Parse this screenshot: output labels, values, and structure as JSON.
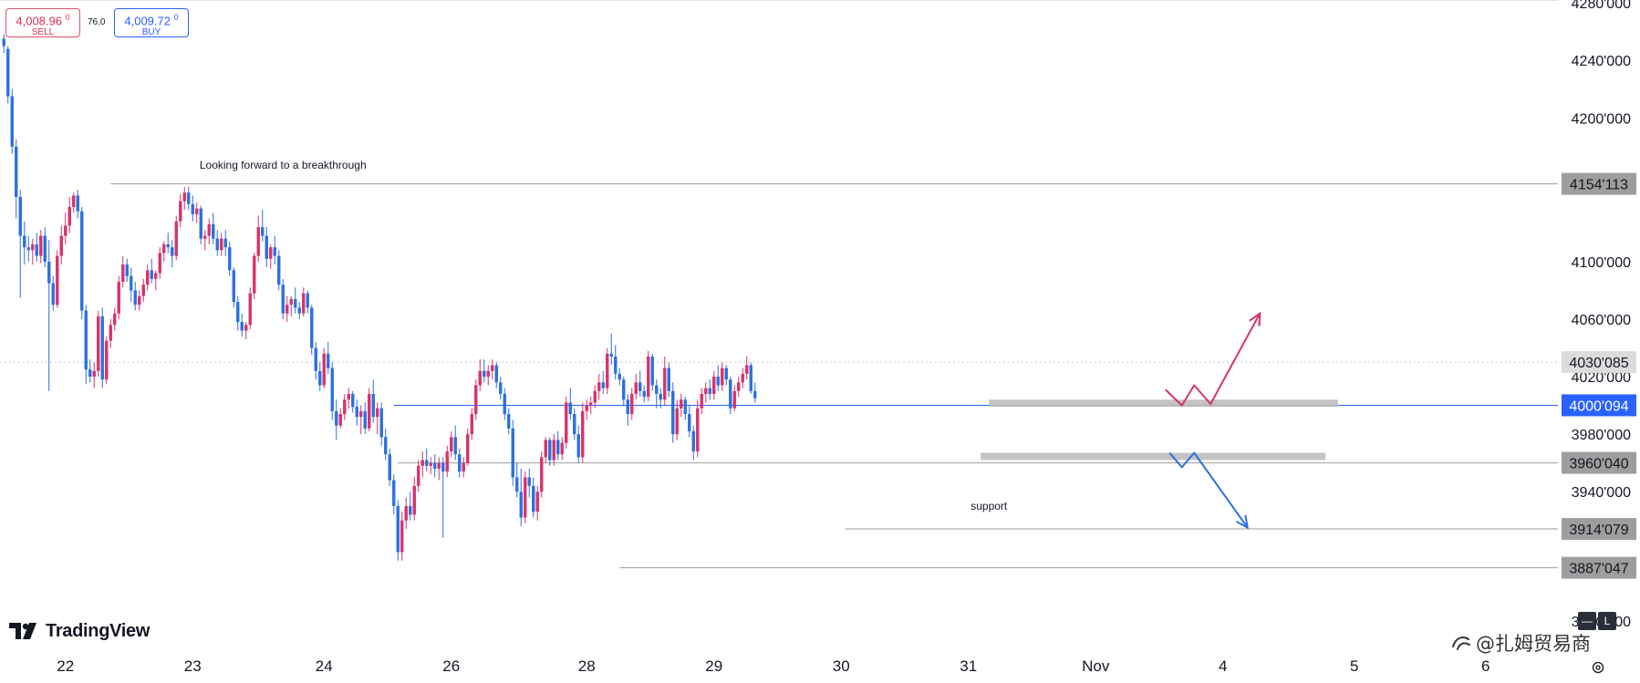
{
  "trade": {
    "sell_price": "4,008.96",
    "sell_sup": "0",
    "sell_label": "SELL",
    "spread": "76.0",
    "buy_price": "4,009.72",
    "buy_sup": "0",
    "buy_label": "BUY"
  },
  "branding": {
    "logo_text": "TradingView",
    "watermark_text": "@扎姆贸易商",
    "mode_buttons": [
      "—",
      "L"
    ]
  },
  "colors": {
    "up": "#d6336c",
    "down": "#2d6fe0",
    "level_line": "#9e9e9e",
    "current_line": "#2962ff",
    "zone": "#bdbdbd",
    "arrow_up": "#d6336c",
    "arrow_down": "#2d6fe0",
    "tag_grey": "#9e9e9e",
    "tag_light": "#dcdcdc",
    "tag_current": "#2962ff"
  },
  "chart_data": {
    "type": "candlestick",
    "title": "",
    "xlabel": "",
    "ylabel": "",
    "ylim": [
      3838,
      4282
    ],
    "y_ticks": [
      "4280'000",
      "4240'000",
      "4200'000",
      "4100'000",
      "4060'000",
      "4020'000",
      "3980'000",
      "3940'000",
      "3850'000"
    ],
    "y_tick_values": [
      4280,
      4240,
      4200,
      4100,
      4060,
      4020,
      3980,
      3940,
      3850
    ],
    "x_ticks": [
      "22",
      "23",
      "24",
      "26",
      "28",
      "29",
      "30",
      "31",
      "Nov",
      "4",
      "5",
      "6"
    ],
    "x_tick_index": [
      15,
      46,
      78,
      109,
      142,
      173,
      204,
      235,
      266,
      297,
      329,
      361
    ],
    "price_tags": [
      {
        "label": "4154'113",
        "value": 4154.113,
        "style": "grey"
      },
      {
        "label": "4030'085",
        "value": 4030.085,
        "style": "light"
      },
      {
        "label": "4000'094",
        "value": 4000.094,
        "style": "current"
      },
      {
        "label": "3960'040",
        "value": 3960.04,
        "style": "grey"
      },
      {
        "label": "3914'079",
        "value": 3914.079,
        "style": "grey"
      },
      {
        "label": "3887'047",
        "value": 3887.047,
        "style": "grey"
      }
    ],
    "levels": [
      {
        "value": 4154.113,
        "from_index": 26
      },
      {
        "value": 4000.094,
        "from_index": 95,
        "style": "current"
      },
      {
        "value": 3960.04,
        "from_index": 96
      },
      {
        "value": 3914.079,
        "from_index": 205
      },
      {
        "value": 3887.047,
        "from_index": 150
      }
    ],
    "dotted_level": 4030.085,
    "zones": [
      {
        "from_index": 240,
        "to_index": 325,
        "low": 3999,
        "high": 4004
      },
      {
        "from_index": 238,
        "to_index": 322,
        "low": 3962,
        "high": 3967
      }
    ],
    "annotations": [
      {
        "text": "Looking forward to a breakthrough",
        "index": 68,
        "value": 4162
      },
      {
        "text": "support",
        "index": 240,
        "value": 3925
      }
    ],
    "projection_up": [
      [
        283,
        4011
      ],
      [
        287,
        4000
      ],
      [
        290,
        4014
      ],
      [
        294,
        4001
      ],
      [
        306,
        4064
      ]
    ],
    "projection_down": [
      [
        284,
        3967
      ],
      [
        287,
        3957
      ],
      [
        290,
        3967
      ],
      [
        303,
        3915
      ]
    ],
    "ohlc": [
      [
        4255,
        4258,
        4245,
        4250
      ],
      [
        4248,
        4250,
        4210,
        4215
      ],
      [
        4215,
        4220,
        4175,
        4180
      ],
      [
        4180,
        4185,
        4130,
        4145
      ],
      [
        4145,
        4150,
        4075,
        4118
      ],
      [
        4118,
        4128,
        4098,
        4110
      ],
      [
        4110,
        4118,
        4100,
        4108
      ],
      [
        4108,
        4116,
        4098,
        4112
      ],
      [
        4112,
        4120,
        4100,
        4104
      ],
      [
        4104,
        4122,
        4099,
        4118
      ],
      [
        4118,
        4124,
        4096,
        4100
      ],
      [
        4100,
        4115,
        4010,
        4085
      ],
      [
        4085,
        4090,
        4066,
        4070
      ],
      [
        4070,
        4108,
        4068,
        4104
      ],
      [
        4104,
        4125,
        4098,
        4118
      ],
      [
        4118,
        4134,
        4112,
        4125
      ],
      [
        4125,
        4145,
        4120,
        4138
      ],
      [
        4138,
        4148,
        4134,
        4146
      ],
      [
        4146,
        4150,
        4130,
        4135
      ],
      [
        4135,
        4138,
        4060,
        4066
      ],
      [
        4066,
        4070,
        4015,
        4025
      ],
      [
        4025,
        4032,
        4016,
        4020
      ],
      [
        4020,
        4030,
        4012,
        4024
      ],
      [
        4024,
        4066,
        4020,
        4062
      ],
      [
        4062,
        4068,
        4012,
        4018
      ],
      [
        4018,
        4048,
        4015,
        4045
      ],
      [
        4045,
        4060,
        4040,
        4056
      ],
      [
        4056,
        4068,
        4052,
        4064
      ],
      [
        4064,
        4090,
        4060,
        4086
      ],
      [
        4086,
        4104,
        4082,
        4098
      ],
      [
        4098,
        4102,
        4086,
        4090
      ],
      [
        4090,
        4096,
        4072,
        4080
      ],
      [
        4080,
        4086,
        4066,
        4070
      ],
      [
        4070,
        4080,
        4066,
        4076
      ],
      [
        4076,
        4088,
        4072,
        4084
      ],
      [
        4084,
        4098,
        4080,
        4094
      ],
      [
        4094,
        4102,
        4085,
        4088
      ],
      [
        4088,
        4094,
        4080,
        4092
      ],
      [
        4092,
        4110,
        4088,
        4106
      ],
      [
        4106,
        4114,
        4100,
        4112
      ],
      [
        4112,
        4120,
        4106,
        4110
      ],
      [
        4110,
        4115,
        4096,
        4104
      ],
      [
        4104,
        4132,
        4101,
        4128
      ],
      [
        4128,
        4147,
        4124,
        4142
      ],
      [
        4142,
        4152,
        4136,
        4148
      ],
      [
        4148,
        4152,
        4136,
        4140
      ],
      [
        4140,
        4146,
        4128,
        4133
      ],
      [
        4133,
        4141,
        4127,
        4137
      ],
      [
        4137,
        4139,
        4112,
        4116
      ],
      [
        4116,
        4122,
        4108,
        4118
      ],
      [
        4118,
        4130,
        4112,
        4126
      ],
      [
        4126,
        4134,
        4112,
        4116
      ],
      [
        4116,
        4122,
        4104,
        4108
      ],
      [
        4108,
        4120,
        4104,
        4116
      ],
      [
        4116,
        4122,
        4104,
        4110
      ],
      [
        4110,
        4114,
        4090,
        4094
      ],
      [
        4094,
        4096,
        4068,
        4072
      ],
      [
        4072,
        4076,
        4052,
        4058
      ],
      [
        4058,
        4064,
        4048,
        4052
      ],
      [
        4052,
        4058,
        4046,
        4056
      ],
      [
        4056,
        4082,
        4053,
        4078
      ],
      [
        4078,
        4106,
        4074,
        4104
      ],
      [
        4104,
        4132,
        4100,
        4124
      ],
      [
        4124,
        4136,
        4114,
        4118
      ],
      [
        4118,
        4124,
        4096,
        4102
      ],
      [
        4102,
        4112,
        4095,
        4110
      ],
      [
        4110,
        4118,
        4098,
        4104
      ],
      [
        4104,
        4108,
        4080,
        4084
      ],
      [
        4084,
        4088,
        4060,
        4064
      ],
      [
        4064,
        4076,
        4058,
        4070
      ],
      [
        4070,
        4076,
        4062,
        4074
      ],
      [
        4074,
        4082,
        4064,
        4068
      ],
      [
        4068,
        4072,
        4060,
        4064
      ],
      [
        4064,
        4082,
        4062,
        4078
      ],
      [
        4078,
        4080,
        4064,
        4068
      ],
      [
        4068,
        4070,
        4035,
        4040
      ],
      [
        4040,
        4044,
        4018,
        4024
      ],
      [
        4024,
        4030,
        4010,
        4014
      ],
      [
        4014,
        4040,
        4012,
        4036
      ],
      [
        4036,
        4044,
        4022,
        4026
      ],
      [
        4026,
        4030,
        3990,
        3996
      ],
      [
        3996,
        4004,
        3976,
        3986
      ],
      [
        3986,
        3998,
        3984,
        3994
      ],
      [
        3994,
        4008,
        3990,
        4004
      ],
      [
        4004,
        4012,
        3998,
        4008
      ],
      [
        4008,
        4010,
        3995,
        3999
      ],
      [
        3999,
        4004,
        3986,
        3992
      ],
      [
        3992,
        4000,
        3980,
        3996
      ],
      [
        3996,
        4002,
        3980,
        3984
      ],
      [
        3984,
        4012,
        3982,
        4008
      ],
      [
        4008,
        4018,
        3988,
        3992
      ],
      [
        3992,
        4002,
        3980,
        3998
      ],
      [
        3998,
        4002,
        3972,
        3978
      ],
      [
        3978,
        3984,
        3962,
        3966
      ],
      [
        3966,
        3970,
        3944,
        3948
      ],
      [
        3948,
        3952,
        3924,
        3930
      ],
      [
        3930,
        3934,
        3892,
        3898
      ],
      [
        3898,
        3926,
        3892,
        3920
      ],
      [
        3920,
        3936,
        3914,
        3930
      ],
      [
        3930,
        3940,
        3920,
        3924
      ],
      [
        3924,
        3950,
        3920,
        3944
      ],
      [
        3944,
        3962,
        3940,
        3958
      ],
      [
        3958,
        3968,
        3950,
        3962
      ],
      [
        3962,
        3970,
        3954,
        3958
      ],
      [
        3958,
        3964,
        3952,
        3960
      ],
      [
        3960,
        3966,
        3950,
        3956
      ],
      [
        3956,
        3964,
        3948,
        3960
      ],
      [
        3960,
        3964,
        3908,
        3954
      ],
      [
        3954,
        3972,
        3950,
        3968
      ],
      [
        3968,
        3982,
        3964,
        3978
      ],
      [
        3978,
        3986,
        3962,
        3966
      ],
      [
        3966,
        3970,
        3950,
        3954
      ],
      [
        3954,
        3964,
        3950,
        3960
      ],
      [
        3960,
        3984,
        3958,
        3980
      ],
      [
        3980,
        3998,
        3976,
        3994
      ],
      [
        3994,
        4018,
        3990,
        4014
      ],
      [
        4014,
        4032,
        4010,
        4024
      ],
      [
        4024,
        4032,
        4016,
        4020
      ],
      [
        4020,
        4028,
        4014,
        4024
      ],
      [
        4024,
        4032,
        4018,
        4028
      ],
      [
        4028,
        4030,
        4012,
        4016
      ],
      [
        4016,
        4020,
        4004,
        4008
      ],
      [
        4008,
        4012,
        3990,
        3994
      ],
      [
        3994,
        3998,
        3980,
        3984
      ],
      [
        3984,
        3990,
        3944,
        3950
      ],
      [
        3950,
        3960,
        3936,
        3940
      ],
      [
        3940,
        3956,
        3916,
        3922
      ],
      [
        3922,
        3954,
        3918,
        3950
      ],
      [
        3950,
        3956,
        3936,
        3944
      ],
      [
        3944,
        3950,
        3922,
        3926
      ],
      [
        3926,
        3944,
        3920,
        3940
      ],
      [
        3940,
        3968,
        3936,
        3964
      ],
      [
        3964,
        3978,
        3960,
        3976
      ],
      [
        3976,
        3978,
        3958,
        3962
      ],
      [
        3962,
        3980,
        3958,
        3976
      ],
      [
        3976,
        3982,
        3962,
        3966
      ],
      [
        3966,
        3978,
        3962,
        3974
      ],
      [
        3974,
        4006,
        3970,
        4002
      ],
      [
        4002,
        4012,
        3990,
        3994
      ],
      [
        3994,
        3998,
        3976,
        3980
      ],
      [
        3980,
        3986,
        3960,
        3964
      ],
      [
        3964,
        4002,
        3960,
        3996
      ],
      [
        3996,
        4004,
        3990,
        4000
      ],
      [
        4000,
        4006,
        3994,
        4002
      ],
      [
        4002,
        4014,
        3998,
        4010
      ],
      [
        4010,
        4022,
        4004,
        4016
      ],
      [
        4016,
        4024,
        4008,
        4012
      ],
      [
        4012,
        4040,
        4008,
        4036
      ],
      [
        4036,
        4050,
        4028,
        4034
      ],
      [
        4034,
        4042,
        4018,
        4022
      ],
      [
        4022,
        4026,
        4014,
        4018
      ],
      [
        4018,
        4020,
        4000,
        4004
      ],
      [
        4004,
        4008,
        3986,
        3994
      ],
      [
        3994,
        4012,
        3990,
        4008
      ],
      [
        4008,
        4022,
        4004,
        4016
      ],
      [
        4016,
        4024,
        4006,
        4010
      ],
      [
        4010,
        4014,
        4002,
        4006
      ],
      [
        4006,
        4038,
        4003,
        4034
      ],
      [
        4034,
        4036,
        4010,
        4014
      ],
      [
        4014,
        4018,
        3998,
        4008
      ],
      [
        4008,
        4012,
        3998,
        4004
      ],
      [
        4004,
        4034,
        4000,
        4026
      ],
      [
        4026,
        4030,
        4006,
        4010
      ],
      [
        4010,
        4016,
        3974,
        3980
      ],
      [
        3980,
        4004,
        3976,
        3998
      ],
      [
        3998,
        4008,
        3992,
        4004
      ],
      [
        4004,
        4006,
        3990,
        3994
      ],
      [
        3994,
        4000,
        3978,
        3982
      ],
      [
        3982,
        3986,
        3962,
        3968
      ],
      [
        3968,
        4004,
        3964,
        3998
      ],
      [
        3998,
        4012,
        3994,
        4008
      ],
      [
        4008,
        4016,
        4002,
        4012
      ],
      [
        4012,
        4018,
        4004,
        4008
      ],
      [
        4008,
        4024,
        4004,
        4020
      ],
      [
        4020,
        4028,
        4010,
        4014
      ],
      [
        4014,
        4030,
        4010,
        4026
      ],
      [
        4026,
        4028,
        4014,
        4018
      ],
      [
        4018,
        4020,
        3994,
        3998
      ],
      [
        3998,
        4014,
        3996,
        4010
      ],
      [
        4010,
        4020,
        4006,
        4016
      ],
      [
        4016,
        4026,
        4012,
        4022
      ],
      [
        4022,
        4034,
        4018,
        4028
      ],
      [
        4028,
        4030,
        4008,
        4010
      ],
      [
        4010,
        4016,
        4002,
        4005
      ]
    ]
  }
}
